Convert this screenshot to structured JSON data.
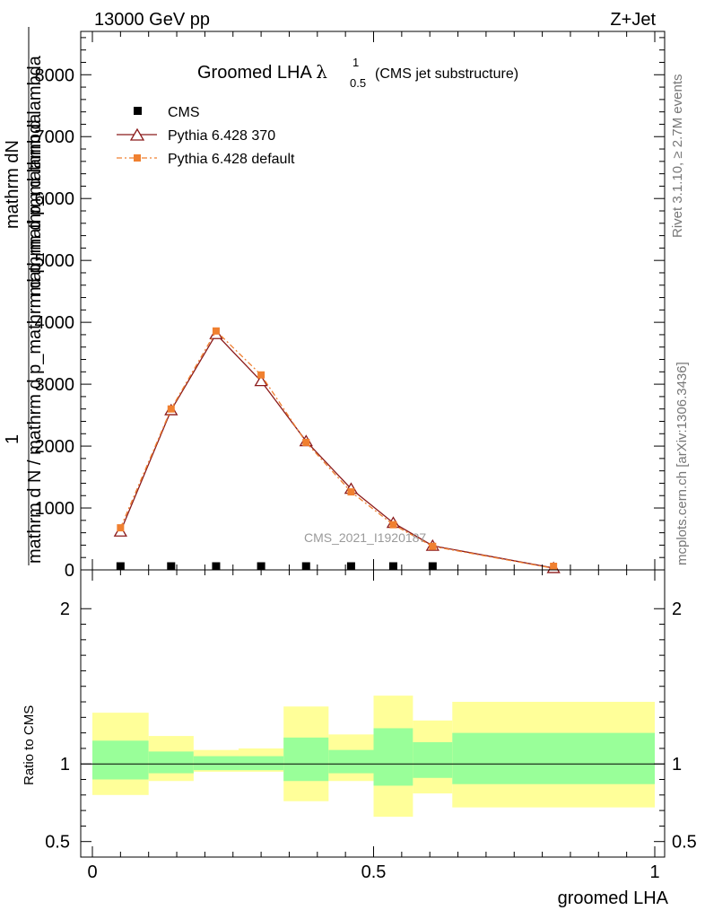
{
  "header": {
    "left": "13000 GeV pp",
    "right": "Z+Jet"
  },
  "side_text": {
    "rivet": "Rivet 3.1.10, ≥ 2.7M events",
    "mcplots": "mcplots.cern.ch [arXiv:1306.3436]"
  },
  "chart_data": [
    {
      "type": "line",
      "panel": "main",
      "title": "Groomed LHA",
      "title_symbol": "λ",
      "title_superscript": "1",
      "title_subscript": "0.5",
      "subtitle": "(CMS jet substructure)",
      "ylabel_numerator": "mathrm dN",
      "ylabel_denominator": "mathrm d p_mathrm d lambda",
      "ylabel_prefix": "1",
      "ylabel_prefix_denominator": "mathrm d N / mathrm d p_mathrm d p_mathrm d lambda",
      "watermark": "CMS_2021_I1920187",
      "xlim": [
        0,
        1
      ],
      "ylim": [
        0,
        8700
      ],
      "yticks": [
        0,
        1000,
        2000,
        3000,
        4000,
        5000,
        6000,
        7000,
        8000
      ],
      "ytick_labels": [
        "0",
        "1000",
        "2000",
        "3000",
        "4000",
        "5000",
        "6000",
        "7000",
        "8000"
      ],
      "legend_position": "top-left",
      "series": [
        {
          "name": "CMS",
          "marker": "square",
          "color": "#000000",
          "x": [
            0.05,
            0.14,
            0.22,
            0.3,
            0.38,
            0.46,
            0.535,
            0.605
          ],
          "y": [
            5,
            5,
            5,
            5,
            5,
            5,
            5,
            5
          ]
        },
        {
          "name": "Pythia 6.428 370",
          "marker": "open-triangle",
          "line": "solid",
          "color": "#8b1a1a",
          "x": [
            0.05,
            0.14,
            0.22,
            0.3,
            0.38,
            0.46,
            0.535,
            0.605,
            0.82
          ],
          "y": [
            620,
            2580,
            3810,
            3050,
            2080,
            1310,
            760,
            390,
            30
          ]
        },
        {
          "name": "Pythia 6.428 default",
          "marker": "square",
          "line": "dash-dot",
          "color": "#f08030",
          "x": [
            0.05,
            0.14,
            0.22,
            0.3,
            0.38,
            0.46,
            0.535,
            0.605,
            0.82
          ],
          "y": [
            680,
            2600,
            3860,
            3150,
            2060,
            1260,
            730,
            380,
            25
          ]
        }
      ]
    },
    {
      "type": "area",
      "panel": "ratio",
      "ylabel": "Ratio to CMS",
      "xlabel": "groomed LHA",
      "xlim": [
        0,
        1
      ],
      "ylim": [
        0.4,
        2.25
      ],
      "xticks": [
        0,
        0.5,
        1
      ],
      "xtick_labels": [
        "0",
        "0.5",
        "1"
      ],
      "ytick_labels": [
        "0.5",
        "1",
        "2"
      ],
      "yticks": [
        0.5,
        1,
        2
      ],
      "bins": [
        {
          "xlo": 0.0,
          "xhi": 0.1,
          "inner": [
            0.9,
            1.15
          ],
          "outer": [
            0.8,
            1.33
          ]
        },
        {
          "xlo": 0.1,
          "xhi": 0.18,
          "inner": [
            0.94,
            1.08
          ],
          "outer": [
            0.89,
            1.18
          ]
        },
        {
          "xlo": 0.18,
          "xhi": 0.26,
          "inner": [
            0.96,
            1.05
          ],
          "outer": [
            0.95,
            1.09
          ]
        },
        {
          "xlo": 0.26,
          "xhi": 0.34,
          "inner": [
            0.96,
            1.05
          ],
          "outer": [
            0.95,
            1.1
          ]
        },
        {
          "xlo": 0.34,
          "xhi": 0.42,
          "inner": [
            0.89,
            1.17
          ],
          "outer": [
            0.76,
            1.37
          ]
        },
        {
          "xlo": 0.42,
          "xhi": 0.5,
          "inner": [
            0.94,
            1.09
          ],
          "outer": [
            0.89,
            1.19
          ]
        },
        {
          "xlo": 0.5,
          "xhi": 0.57,
          "inner": [
            0.86,
            1.23
          ],
          "outer": [
            0.66,
            1.44
          ]
        },
        {
          "xlo": 0.57,
          "xhi": 0.64,
          "inner": [
            0.91,
            1.14
          ],
          "outer": [
            0.81,
            1.28
          ]
        },
        {
          "xlo": 0.64,
          "xhi": 1.0,
          "inner": [
            0.87,
            1.2
          ],
          "outer": [
            0.72,
            1.4
          ]
        }
      ],
      "reference_line": 1,
      "colors": {
        "inner": "#99ff99",
        "outer": "#ffff99"
      }
    }
  ]
}
